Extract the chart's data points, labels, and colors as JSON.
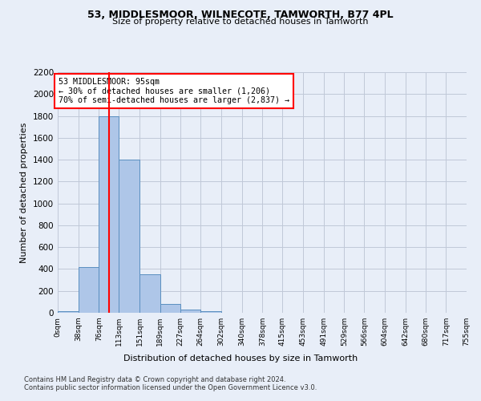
{
  "title1": "53, MIDDLESMOOR, WILNECOTE, TAMWORTH, B77 4PL",
  "title2": "Size of property relative to detached houses in Tamworth",
  "xlabel": "Distribution of detached houses by size in Tamworth",
  "ylabel": "Number of detached properties",
  "bin_edges": [
    0,
    38,
    76,
    113,
    151,
    189,
    227,
    264,
    302,
    340,
    378,
    415,
    453,
    491,
    529,
    566,
    604,
    642,
    680,
    717,
    755
  ],
  "bar_heights": [
    15,
    420,
    1800,
    1400,
    350,
    80,
    30,
    15,
    0,
    0,
    0,
    0,
    0,
    0,
    0,
    0,
    0,
    0,
    0,
    0
  ],
  "bar_color": "#aec6e8",
  "bar_edge_color": "#5a8fc0",
  "grid_color": "#c0c8d8",
  "bg_color": "#e8eef8",
  "vline_x": 95,
  "vline_color": "red",
  "annotation_text": "53 MIDDLESMOOR: 95sqm\n← 30% of detached houses are smaller (1,206)\n70% of semi-detached houses are larger (2,837) →",
  "annotation_box_color": "white",
  "annotation_box_edge": "red",
  "ylim": [
    0,
    2200
  ],
  "yticks": [
    0,
    200,
    400,
    600,
    800,
    1000,
    1200,
    1400,
    1600,
    1800,
    2000,
    2200
  ],
  "footer1": "Contains HM Land Registry data © Crown copyright and database right 2024.",
  "footer2": "Contains public sector information licensed under the Open Government Licence v3.0.",
  "tick_labels": [
    "0sqm",
    "38sqm",
    "76sqm",
    "113sqm",
    "151sqm",
    "189sqm",
    "227sqm",
    "264sqm",
    "302sqm",
    "340sqm",
    "378sqm",
    "415sqm",
    "453sqm",
    "491sqm",
    "529sqm",
    "566sqm",
    "604sqm",
    "642sqm",
    "680sqm",
    "717sqm",
    "755sqm"
  ]
}
